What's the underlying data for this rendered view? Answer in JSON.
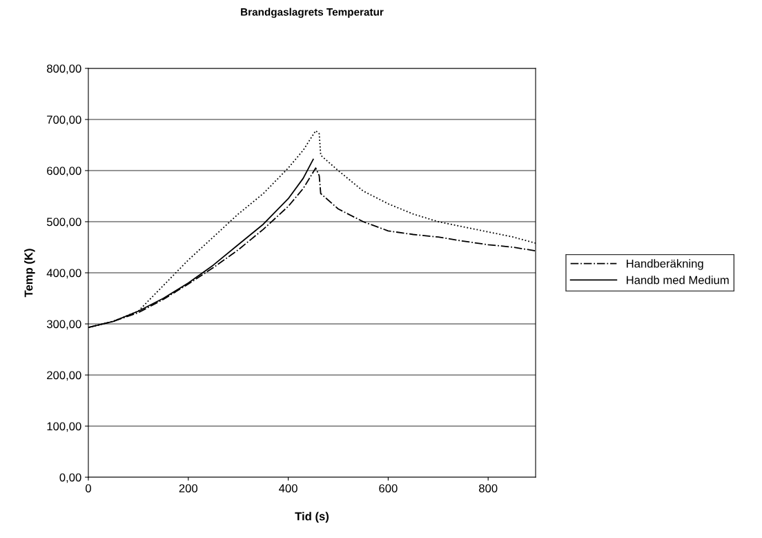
{
  "chart_data": {
    "type": "line",
    "title": "Brandgaslagrets Temperatur",
    "xlabel": "Tid (s)",
    "ylabel": "Temp (K)",
    "xlim": [
      0,
      895
    ],
    "xticks": [
      0,
      200,
      400,
      600,
      800
    ],
    "ylim": [
      0,
      800
    ],
    "yticks": [
      {
        "value": 0,
        "label": "0,00"
      },
      {
        "value": 100,
        "label": "100,00"
      },
      {
        "value": 200,
        "label": "200,00"
      },
      {
        "value": 300,
        "label": "300,00"
      },
      {
        "value": 400,
        "label": "400,00"
      },
      {
        "value": 500,
        "label": "500,00"
      },
      {
        "value": 600,
        "label": "600,00"
      },
      {
        "value": 700,
        "label": "700,00"
      },
      {
        "value": 800,
        "label": "800,00"
      }
    ],
    "grid": "y",
    "legend": "right",
    "marker": "none",
    "series": [
      {
        "color": "#000000",
        "line_style": "dotted",
        "x": [
          0,
          50,
          100,
          150,
          200,
          250,
          300,
          350,
          400,
          430,
          455,
          462,
          465,
          500,
          550,
          600,
          650,
          700,
          750,
          800,
          850,
          895
        ],
        "values": [
          293,
          305,
          325,
          375,
          425,
          470,
          515,
          555,
          605,
          640,
          678,
          672,
          630,
          600,
          560,
          535,
          515,
          500,
          490,
          480,
          470,
          458
        ]
      },
      {
        "name": "Handberäkning",
        "color": "#000000",
        "line_style": "dashdot",
        "x": [
          0,
          50,
          100,
          150,
          200,
          250,
          300,
          350,
          400,
          430,
          455,
          462,
          465,
          500,
          550,
          600,
          650,
          700,
          750,
          800,
          850,
          895
        ],
        "values": [
          293,
          305,
          322,
          348,
          378,
          410,
          445,
          485,
          530,
          565,
          605,
          590,
          555,
          525,
          500,
          482,
          475,
          470,
          462,
          455,
          450,
          443
        ]
      },
      {
        "name": "Handb med Medium",
        "color": "#000000",
        "line_style": "solid",
        "x": [
          0,
          50,
          100,
          150,
          200,
          250,
          300,
          350,
          400,
          430,
          450
        ],
        "values": [
          293,
          305,
          325,
          350,
          380,
          415,
          455,
          495,
          545,
          585,
          622
        ]
      }
    ]
  }
}
